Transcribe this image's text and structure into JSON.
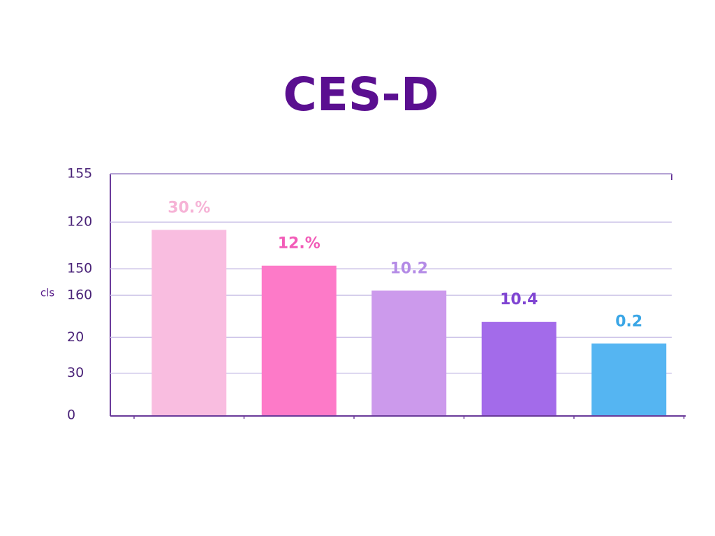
{
  "chart_data": {
    "type": "bar",
    "title": "CES-D",
    "y_label": "cls",
    "categories": [
      null,
      null,
      null,
      null,
      null
    ],
    "values": [
      119,
      96,
      80,
      60,
      46
    ],
    "annotations": [
      "30.%",
      "12.%",
      "10.2",
      "10.4",
      "0.2"
    ],
    "colors": [
      "#f9bde0",
      "#fd7ac8",
      "#cc9aec",
      "#a36bea",
      "#55b5f2"
    ],
    "annotation_colors": [
      "#f6b3d6",
      "#f25cb8",
      "#b48be6",
      "#7f44d2",
      "#3aa6e6"
    ],
    "ylim": [
      0,
      155
    ],
    "yticks": [
      155,
      {
        "value": 124,
        "label": "120"
      },
      {
        "value": 94,
        "label": "150"
      },
      {
        "value": 77,
        "label": "160"
      },
      {
        "value": 50,
        "label": "20"
      },
      {
        "value": 27,
        "label": "30"
      },
      0
    ],
    "grid": true
  }
}
